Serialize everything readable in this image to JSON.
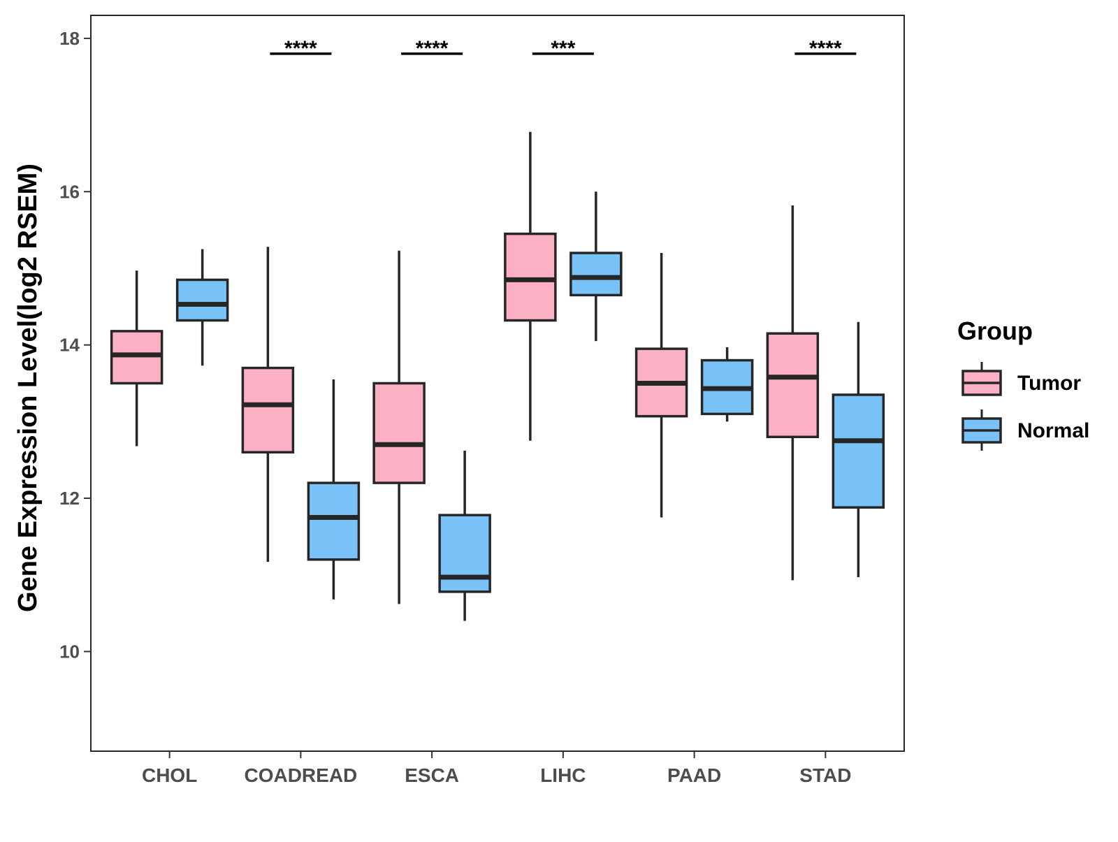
{
  "chart_data": {
    "type": "box",
    "ylabel": "Gene Expression Level(log2 RSEM)",
    "xlabel": "",
    "ylim": [
      8.7,
      18.3
    ],
    "yticks": [
      10,
      12,
      14,
      16,
      18
    ],
    "ytick_labels": [
      "10",
      "12",
      "14",
      "16",
      "18"
    ],
    "grid": false,
    "categories": [
      "CHOL",
      "COADREAD",
      "ESCA",
      "LIHC",
      "PAAD",
      "STAD"
    ],
    "series": [
      {
        "name": "Tumor",
        "color": "#fbb1c3",
        "boxes": [
          {
            "whisker_low": 12.68,
            "q1": 13.5,
            "median": 13.87,
            "q3": 14.18,
            "whisker_high": 14.97
          },
          {
            "whisker_low": 11.17,
            "q1": 12.6,
            "median": 13.22,
            "q3": 13.7,
            "whisker_high": 15.28
          },
          {
            "whisker_low": 10.62,
            "q1": 12.2,
            "median": 12.7,
            "q3": 13.5,
            "whisker_high": 15.23
          },
          {
            "whisker_low": 12.75,
            "q1": 14.32,
            "median": 14.85,
            "q3": 15.45,
            "whisker_high": 16.78
          },
          {
            "whisker_low": 11.75,
            "q1": 13.07,
            "median": 13.5,
            "q3": 13.95,
            "whisker_high": 15.2
          },
          {
            "whisker_low": 10.93,
            "q1": 12.8,
            "median": 13.58,
            "q3": 14.15,
            "whisker_high": 15.82
          }
        ]
      },
      {
        "name": "Normal",
        "color": "#79c2f8",
        "boxes": [
          {
            "whisker_low": 13.73,
            "q1": 14.32,
            "median": 14.53,
            "q3": 14.85,
            "whisker_high": 15.25
          },
          {
            "whisker_low": 10.68,
            "q1": 11.2,
            "median": 11.75,
            "q3": 12.2,
            "whisker_high": 13.55
          },
          {
            "whisker_low": 10.4,
            "q1": 10.78,
            "median": 10.97,
            "q3": 11.78,
            "whisker_high": 12.62
          },
          {
            "whisker_low": 14.05,
            "q1": 14.65,
            "median": 14.88,
            "q3": 15.2,
            "whisker_high": 16.0
          },
          {
            "whisker_low": 13.0,
            "q1": 13.1,
            "median": 13.43,
            "q3": 13.8,
            "whisker_high": 13.97
          },
          {
            "whisker_low": 10.97,
            "q1": 11.88,
            "median": 12.75,
            "q3": 13.35,
            "whisker_high": 14.3
          }
        ]
      }
    ],
    "significance": [
      "",
      "****",
      "****",
      "***",
      "",
      "****"
    ],
    "significance_bar_y": 17.8,
    "legend": {
      "title": "Group",
      "position": "right",
      "entries": [
        "Tumor",
        "Normal"
      ]
    }
  }
}
